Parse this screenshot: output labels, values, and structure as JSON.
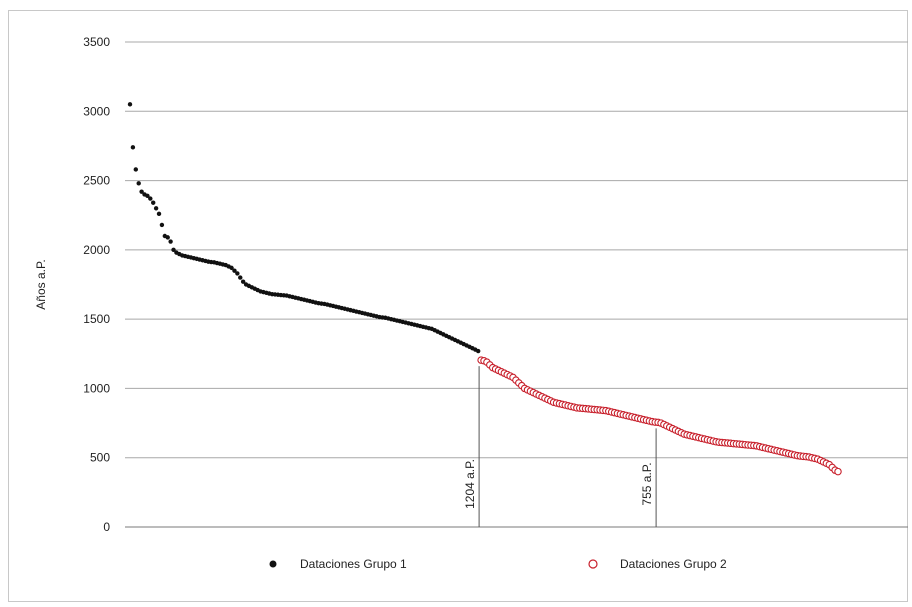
{
  "chart_data": {
    "type": "scatter",
    "title": "",
    "xlabel": "",
    "ylabel": "Años a.P.",
    "ylim": [
      0,
      3500
    ],
    "yticks": [
      0,
      500,
      1000,
      1500,
      2000,
      2500,
      3000,
      3500
    ],
    "grid": "horizontal",
    "legend_position": "bottom",
    "x": "rank order of dates (index, no printed labels)",
    "series": [
      {
        "name": "Dataciones Grupo 1",
        "marker": "filled-circle",
        "color": "#111111",
        "values": [
          3050,
          2740,
          2580,
          2480,
          2420,
          2400,
          2390,
          2370,
          2340,
          2300,
          2260,
          2180,
          2100,
          2090,
          2060,
          2000,
          1980,
          1970,
          1960,
          1955,
          1950,
          1945,
          1940,
          1935,
          1930,
          1925,
          1920,
          1915,
          1912,
          1910,
          1905,
          1900,
          1895,
          1890,
          1880,
          1870,
          1850,
          1830,
          1800,
          1770,
          1750,
          1740,
          1730,
          1720,
          1710,
          1700,
          1695,
          1690,
          1685,
          1680,
          1678,
          1676,
          1674,
          1672,
          1670,
          1665,
          1660,
          1655,
          1650,
          1645,
          1640,
          1635,
          1630,
          1625,
          1620,
          1615,
          1612,
          1610,
          1605,
          1600,
          1595,
          1590,
          1585,
          1580,
          1575,
          1570,
          1565,
          1560,
          1555,
          1550,
          1545,
          1540,
          1535,
          1530,
          1525,
          1520,
          1515,
          1512,
          1510,
          1505,
          1500,
          1495,
          1490,
          1485,
          1480,
          1475,
          1470,
          1465,
          1460,
          1455,
          1450,
          1445,
          1440,
          1435,
          1430,
          1420,
          1410,
          1400,
          1390,
          1380,
          1370,
          1360,
          1350,
          1340,
          1330,
          1320,
          1310,
          1300,
          1290,
          1280,
          1270
        ]
      },
      {
        "name": "Dataciones Grupo 2",
        "marker": "open-circle",
        "color": "#c8202c",
        "values": [
          1204,
          1200,
          1190,
          1170,
          1150,
          1140,
          1130,
          1120,
          1110,
          1100,
          1090,
          1080,
          1060,
          1040,
          1020,
          1000,
          990,
          980,
          970,
          960,
          950,
          940,
          930,
          920,
          910,
          900,
          895,
          890,
          885,
          880,
          875,
          870,
          865,
          860,
          858,
          856,
          854,
          852,
          850,
          848,
          846,
          844,
          842,
          840,
          835,
          830,
          825,
          820,
          815,
          810,
          805,
          800,
          795,
          790,
          785,
          780,
          775,
          770,
          765,
          760,
          757,
          755,
          750,
          740,
          730,
          720,
          710,
          700,
          690,
          680,
          670,
          665,
          660,
          655,
          650,
          645,
          640,
          635,
          630,
          625,
          620,
          615,
          612,
          610,
          608,
          606,
          604,
          602,
          600,
          598,
          596,
          594,
          592,
          590,
          588,
          585,
          580,
          575,
          570,
          565,
          560,
          555,
          550,
          545,
          540,
          535,
          530,
          525,
          520,
          515,
          512,
          510,
          508,
          505,
          500,
          495,
          490,
          480,
          470,
          460,
          450,
          430,
          410,
          400
        ]
      }
    ],
    "annotations": [
      {
        "label": "1204 a.P.",
        "series": 1,
        "index": 0,
        "value": 1204
      },
      {
        "label": "755 a.P.",
        "series": 1,
        "index": 61,
        "value": 755
      }
    ]
  }
}
